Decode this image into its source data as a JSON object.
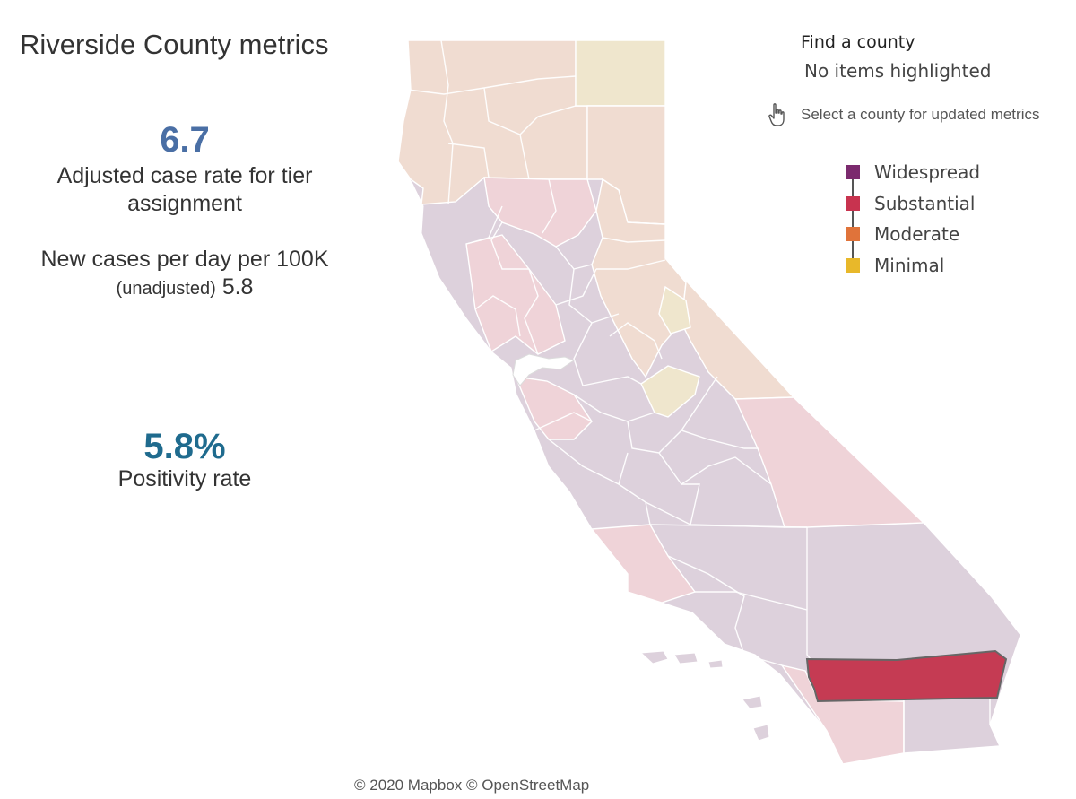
{
  "title": "Riverside County metrics",
  "case_rate": {
    "value": "6.7",
    "label": "Adjusted case rate for tier assignment",
    "new_cases_label": "New cases per day per 100K",
    "unadjusted_label": "(unadjusted)",
    "unadjusted_value": "5.8",
    "color": "#4a6fa5"
  },
  "positivity": {
    "value": "5.8%",
    "label": "Positivity rate",
    "color": "#1f6b8e"
  },
  "find_county": {
    "title": "Find a county",
    "value": "No items highlighted",
    "hint": "Select a county for updated metrics"
  },
  "legend": {
    "items": [
      {
        "label": "Widespread",
        "color": "#7b2a6e"
      },
      {
        "label": "Substantial",
        "color": "#c8334f"
      },
      {
        "label": "Moderate",
        "color": "#e0733a"
      },
      {
        "label": "Minimal",
        "color": "#e8b82a"
      }
    ]
  },
  "map": {
    "selected_county": "Riverside",
    "colors": {
      "widespread_faded": "#ddd1dc",
      "substantial_faded": "#efd3d8",
      "moderate_faded": "#f0dcd1",
      "minimal_faded": "#efe6cd",
      "selected": "#c53b53",
      "border": "#ffffff",
      "selected_border": "#666666"
    }
  },
  "attribution": "© 2020 Mapbox © OpenStreetMap"
}
